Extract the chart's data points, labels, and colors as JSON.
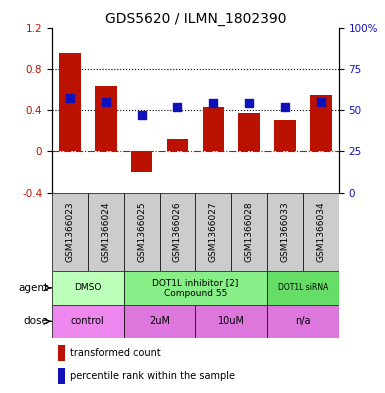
{
  "title": "GDS5620 / ILMN_1802390",
  "samples": [
    "GSM1366023",
    "GSM1366024",
    "GSM1366025",
    "GSM1366026",
    "GSM1366027",
    "GSM1366028",
    "GSM1366033",
    "GSM1366034"
  ],
  "bar_values": [
    0.95,
    0.63,
    -0.2,
    0.12,
    0.43,
    0.37,
    0.3,
    0.55
  ],
  "percentile_values": [
    57,
    55,
    47,
    52,
    54,
    54,
    52,
    55
  ],
  "ylim_left": [
    -0.4,
    1.2
  ],
  "ylim_right": [
    0,
    100
  ],
  "yticks_left": [
    -0.4,
    0.0,
    0.4,
    0.8,
    1.2
  ],
  "ytick_labels_left": [
    "-0.4",
    "0",
    "0.4",
    "0.8",
    "1.2"
  ],
  "yticks_right": [
    0,
    25,
    50,
    75,
    100
  ],
  "ytick_labels_right": [
    "0",
    "25",
    "50",
    "75",
    "100%"
  ],
  "bar_color": "#bb1100",
  "dot_color": "#1111bb",
  "hline_y_left": [
    0.4,
    0.8
  ],
  "zero_line_y": 0.0,
  "agent_groups": [
    {
      "label": "DMSO",
      "start": 0,
      "end": 2,
      "color": "#bbffbb"
    },
    {
      "label": "DOT1L inhibitor [2]\nCompound 55",
      "start": 2,
      "end": 6,
      "color": "#88ee88"
    },
    {
      "label": "DOT1L siRNA",
      "start": 6,
      "end": 8,
      "color": "#66dd66"
    }
  ],
  "dose_groups": [
    {
      "label": "control",
      "start": 0,
      "end": 2,
      "color": "#ee88ee"
    },
    {
      "label": "2uM",
      "start": 2,
      "end": 4,
      "color": "#dd77dd"
    },
    {
      "label": "10uM",
      "start": 4,
      "end": 6,
      "color": "#dd77dd"
    },
    {
      "label": "n/a",
      "start": 6,
      "end": 8,
      "color": "#dd77dd"
    }
  ],
  "legend_bar_label": "transformed count",
  "legend_dot_label": "percentile rank within the sample",
  "agent_label": "agent",
  "dose_label": "dose",
  "title_fontsize": 10,
  "tick_fontsize": 7.5,
  "sample_fontsize": 6.5,
  "bar_width": 0.6,
  "dot_size": 30
}
